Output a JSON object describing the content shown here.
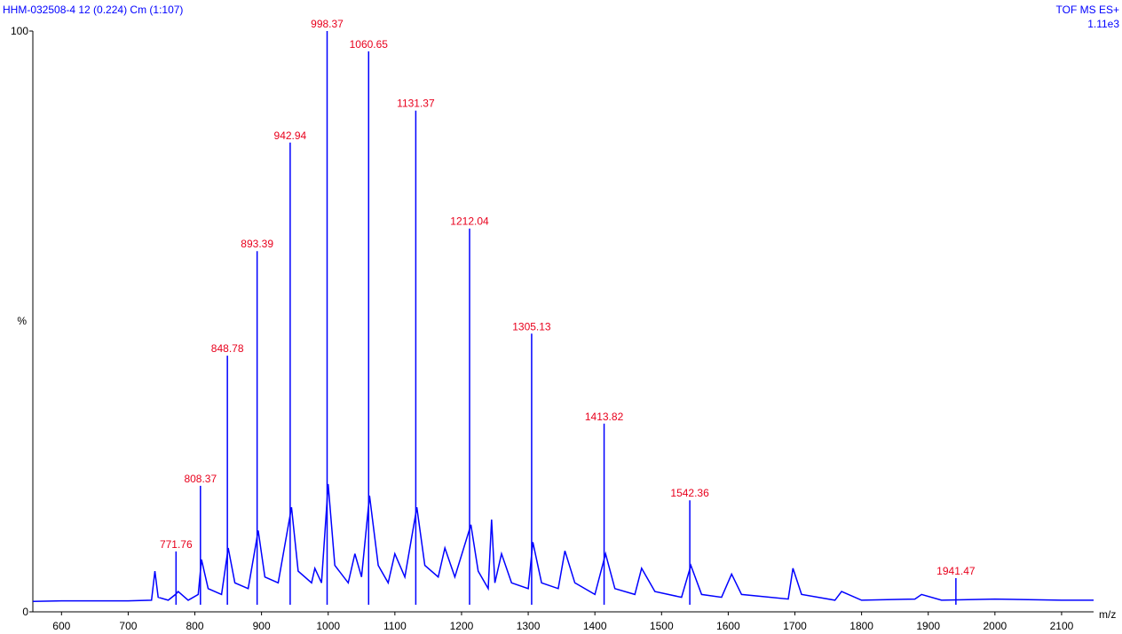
{
  "chart_data": {
    "type": "spectrum",
    "title": "HHM-032508-4 12 (0.224) Cm (1:107)",
    "subtitle": "TOF MS ES+",
    "intensity": "1.11e3",
    "x_label": "m/z",
    "y_label": "%",
    "color": "#0000ff",
    "label_color": "#e8001c",
    "xlim": [
      557,
      2148
    ],
    "ylim": [
      0,
      100
    ],
    "xticks": [
      600,
      700,
      800,
      900,
      1000,
      1100,
      1200,
      1300,
      1400,
      1500,
      1600,
      1700,
      1800,
      1900,
      2000,
      2100
    ],
    "yticks": [
      0,
      100
    ],
    "profile": {
      "x": [
        557,
        600,
        700,
        735,
        740,
        745,
        760,
        771,
        775,
        790,
        805,
        810,
        820,
        840,
        850,
        860,
        880,
        895,
        905,
        925,
        945,
        955,
        975,
        980,
        990,
        1000,
        1010,
        1030,
        1040,
        1050,
        1062,
        1075,
        1090,
        1100,
        1115,
        1133,
        1145,
        1165,
        1175,
        1190,
        1214,
        1225,
        1240,
        1245,
        1250,
        1260,
        1275,
        1300,
        1307,
        1320,
        1345,
        1355,
        1370,
        1400,
        1416,
        1430,
        1460,
        1470,
        1490,
        1530,
        1544,
        1560,
        1590,
        1605,
        1620,
        1690,
        1697,
        1710,
        1760,
        1770,
        1800,
        1880,
        1890,
        1920,
        2000,
        2100,
        2148
      ],
      "values": [
        1.8,
        1.9,
        1.9,
        2,
        7,
        2.5,
        2,
        3,
        3.5,
        2,
        3,
        9,
        4,
        3,
        11,
        5,
        4,
        14,
        6,
        5,
        18,
        7,
        5,
        7.5,
        5,
        22,
        8,
        5,
        10,
        6,
        20,
        8,
        5,
        10,
        6,
        18,
        8,
        6,
        11,
        6,
        15,
        7,
        4,
        15.9,
        5,
        10,
        5,
        4,
        12,
        5,
        4,
        10.5,
        5,
        3,
        10,
        4,
        3,
        7.5,
        3.5,
        2.5,
        8,
        3,
        2.5,
        6.5,
        3,
        2.2,
        7.5,
        3,
        2,
        3.5,
        2,
        2.2,
        3,
        2,
        2.2,
        2,
        2
      ]
    },
    "peaks": {
      "x": [
        771.76,
        808.37,
        848.78,
        893.39,
        942.94,
        998.37,
        1060.65,
        1131.37,
        1212.04,
        1305.13,
        1413.82,
        1542.36,
        1941.47
      ],
      "values": [
        10.4,
        21.7,
        44.1,
        62.1,
        80.8,
        100,
        96.5,
        86.3,
        66.0,
        47.9,
        32.4,
        19.2,
        5.8
      ]
    }
  }
}
